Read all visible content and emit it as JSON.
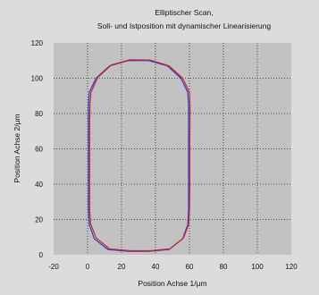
{
  "colors": {
    "page_background": "#dcdcdc",
    "plot_background": "#c2c2c2",
    "gridline": "#2a2a2a",
    "soll_line": "#2a3bd0",
    "ist_line": "#cc1f2a"
  },
  "chart_data": {
    "type": "line",
    "title": "Elliptischer Scan,",
    "subtitle": "Soll- und Istposition mit dynamischer Linearisierung",
    "xlabel": "Position Achse 1/µm",
    "ylabel": "Position Achse 2/µm",
    "xlim": [
      -20,
      120
    ],
    "ylim": [
      0,
      120
    ],
    "xticks": [
      -20,
      0,
      20,
      40,
      60,
      80,
      100,
      120
    ],
    "yticks": [
      0,
      20,
      40,
      60,
      80,
      100,
      120
    ],
    "grid": true,
    "grid_style": "dotted",
    "legend": "none",
    "series": [
      {
        "color": "#2a3bd0",
        "points": [
          [
            24,
            2
          ],
          [
            12,
            3
          ],
          [
            4,
            9
          ],
          [
            1,
            17
          ],
          [
            0.5,
            25
          ],
          [
            0.5,
            35
          ],
          [
            0.5,
            45
          ],
          [
            0.5,
            55
          ],
          [
            0.5,
            65
          ],
          [
            0.5,
            75
          ],
          [
            0.5,
            85
          ],
          [
            1,
            92
          ],
          [
            5,
            100
          ],
          [
            13,
            107
          ],
          [
            24,
            110
          ],
          [
            36,
            110
          ],
          [
            47,
            107
          ],
          [
            55,
            100
          ],
          [
            59,
            92
          ],
          [
            59.5,
            85
          ],
          [
            59.5,
            75
          ],
          [
            59.5,
            65
          ],
          [
            59.5,
            55
          ],
          [
            59.5,
            45
          ],
          [
            59.5,
            35
          ],
          [
            59.5,
            25
          ],
          [
            59,
            17
          ],
          [
            56,
            9
          ],
          [
            48,
            3
          ],
          [
            36,
            2
          ],
          [
            24,
            2
          ]
        ]
      },
      {
        "color": "#cc1f2a",
        "points": [
          [
            25,
            2.3
          ],
          [
            13,
            3.3
          ],
          [
            5,
            9.5
          ],
          [
            1.8,
            17.5
          ],
          [
            1.2,
            25
          ],
          [
            1.2,
            35
          ],
          [
            1.2,
            45
          ],
          [
            1.2,
            55
          ],
          [
            1.2,
            65
          ],
          [
            1.2,
            75
          ],
          [
            1.4,
            85
          ],
          [
            2,
            92
          ],
          [
            6,
            100.5
          ],
          [
            14,
            107.5
          ],
          [
            25,
            110.5
          ],
          [
            37,
            110.3
          ],
          [
            48,
            107
          ],
          [
            56,
            100
          ],
          [
            60,
            92
          ],
          [
            60.3,
            85
          ],
          [
            60.3,
            75
          ],
          [
            60.2,
            65
          ],
          [
            60.2,
            55
          ],
          [
            60.2,
            45
          ],
          [
            60.2,
            35
          ],
          [
            60,
            25
          ],
          [
            59.5,
            17
          ],
          [
            56.5,
            9.5
          ],
          [
            48.5,
            3.4
          ],
          [
            37,
            2.3
          ],
          [
            25,
            2.3
          ]
        ]
      }
    ]
  }
}
